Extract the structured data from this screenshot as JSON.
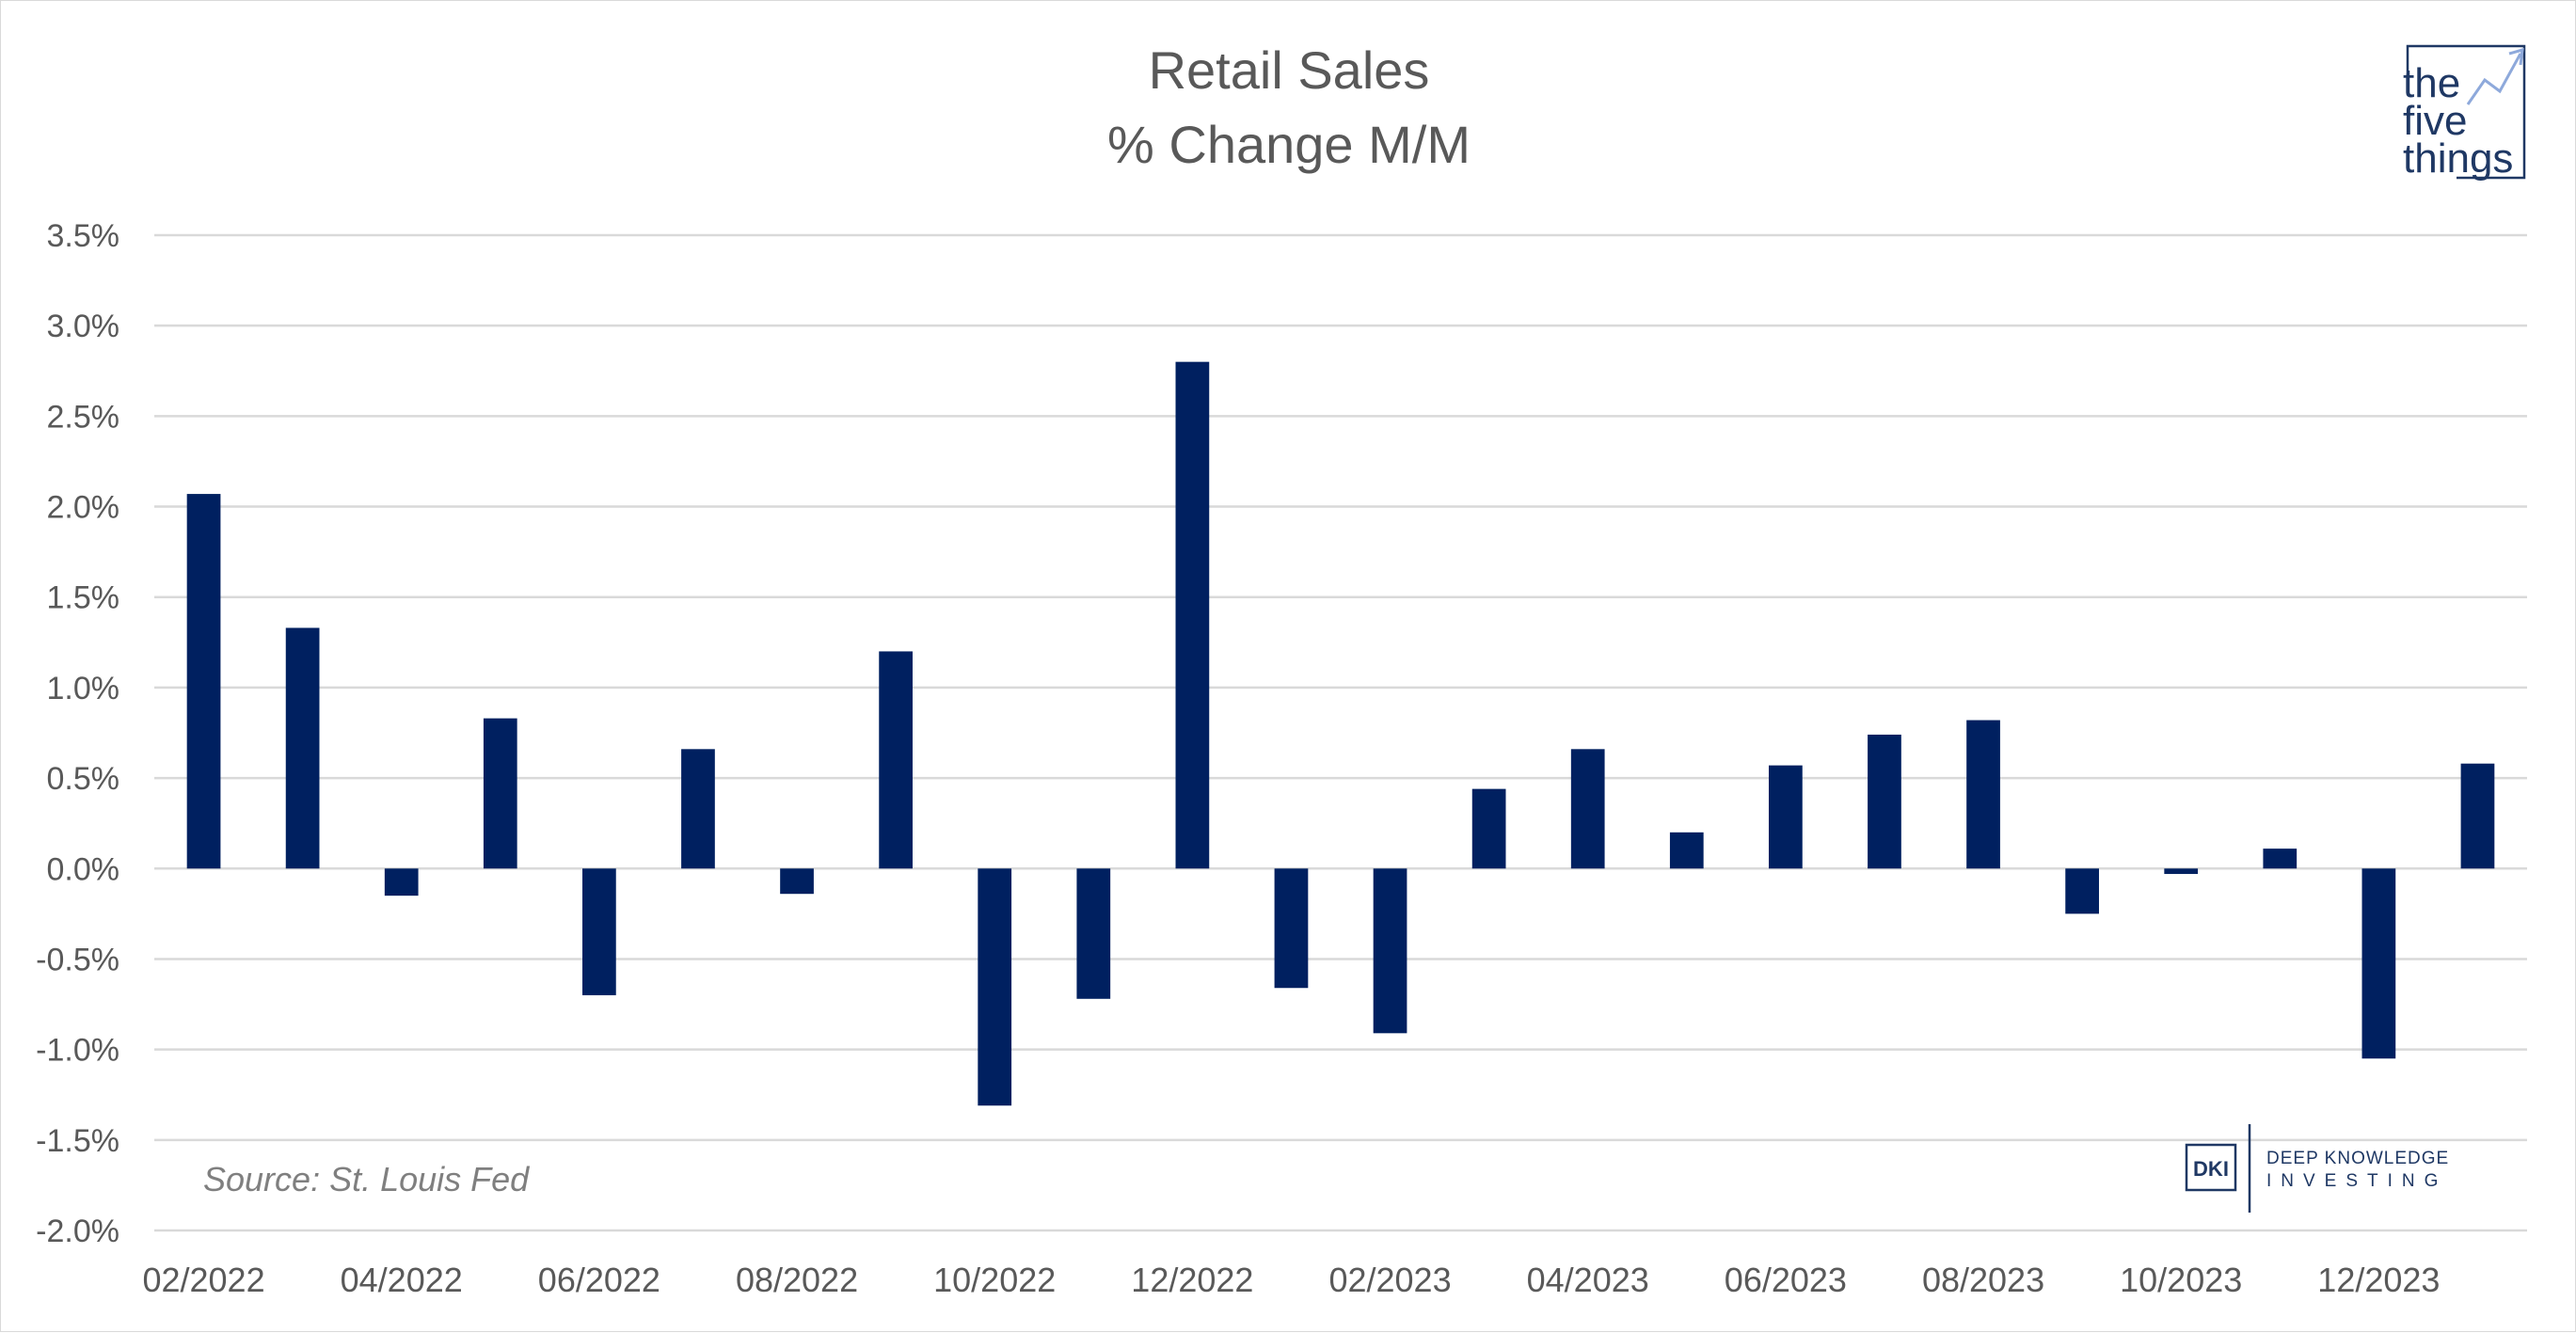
{
  "chart_data": {
    "type": "bar",
    "title": "Retail Sales",
    "subtitle": "% Change M/M",
    "categories": [
      "02/2022",
      "03/2022",
      "04/2022",
      "05/2022",
      "06/2022",
      "07/2022",
      "08/2022",
      "09/2022",
      "10/2022",
      "11/2022",
      "12/2022",
      "01/2023",
      "02/2023",
      "03/2023",
      "04/2023",
      "05/2023",
      "06/2023",
      "07/2023",
      "08/2023",
      "09/2023",
      "10/2023",
      "11/2023",
      "12/2023",
      "01/2024"
    ],
    "x_tick_labels": [
      "02/2022",
      "04/2022",
      "06/2022",
      "08/2022",
      "10/2022",
      "12/2022",
      "02/2023",
      "04/2023",
      "06/2023",
      "08/2023",
      "10/2023",
      "12/2023"
    ],
    "series": [
      {
        "values": [
          2.07,
          1.33,
          -0.15,
          0.83,
          -0.7,
          0.66,
          -0.14,
          1.2,
          -1.31,
          -0.72,
          2.8,
          -0.66,
          -0.91,
          0.44,
          0.66,
          0.2,
          0.57,
          0.74,
          0.82,
          -0.25,
          -0.03,
          0.11,
          -1.05,
          0.58
        ],
        "color": "#002060"
      }
    ],
    "ylim": [
      -2.0,
      3.5
    ],
    "y_ticks": [
      "3.5%",
      "3.0%",
      "2.5%",
      "2.0%",
      "1.5%",
      "1.0%",
      "0.5%",
      "0.0%",
      "-0.5%",
      "-1.0%",
      "-1.5%",
      "-2.0%"
    ],
    "xlabel": "",
    "ylabel": "",
    "grid": true,
    "legend": "none"
  },
  "annotations": {
    "source": "Source: St. Louis Fed"
  },
  "logos": {
    "five_things": [
      "the",
      "five",
      "things"
    ],
    "dki_mark": "DKI",
    "dki_line1": "DEEP KNOWLEDGE",
    "dki_line2": "INVESTING"
  },
  "colors": {
    "bar": "#002060",
    "grid": "#d9d9d9",
    "text": "#595959",
    "logo": "#1f3864"
  }
}
